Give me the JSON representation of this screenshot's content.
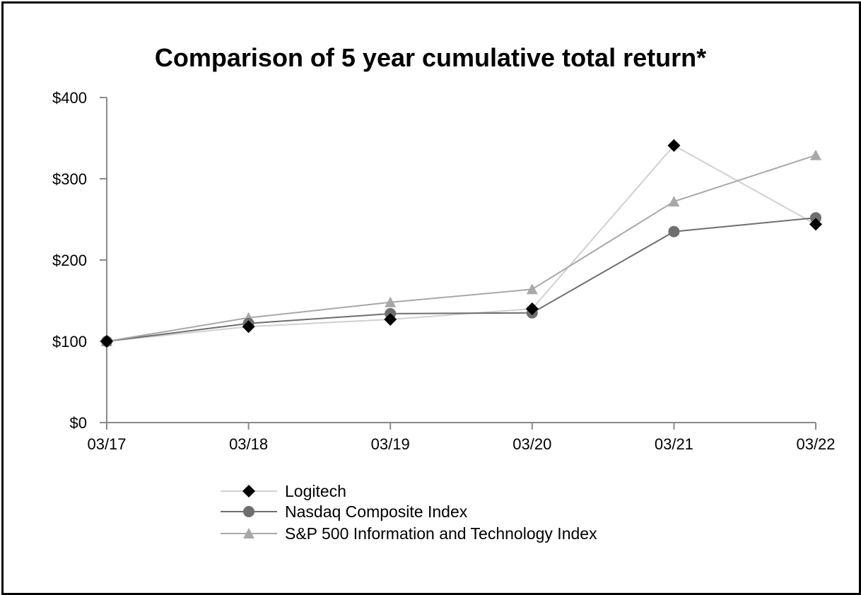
{
  "chart_data": {
    "type": "line",
    "title": "Comparison of 5 year cumulative total return*",
    "xlabel": "",
    "ylabel": "",
    "categories": [
      "03/17",
      "03/18",
      "03/19",
      "03/20",
      "03/21",
      "03/22"
    ],
    "ylim": [
      0,
      400
    ],
    "yticks": [
      0,
      100,
      200,
      300,
      400
    ],
    "ytick_labels": [
      "$0",
      "$100",
      "$200",
      "$300",
      "$400"
    ],
    "grid": false,
    "legend_position": "bottom",
    "series": [
      {
        "name": "Logitech",
        "values": [
          100,
          118,
          127,
          140,
          341,
          244
        ],
        "color": "#d0d0d0",
        "marker": "diamond",
        "marker_color": "#000000"
      },
      {
        "name": "Nasdaq Composite Index",
        "values": [
          100,
          122,
          134,
          135,
          235,
          252
        ],
        "color": "#6e6e6e",
        "marker": "circle",
        "marker_color": "#6e6e6e"
      },
      {
        "name": "S&P 500 Information and Technology Index",
        "values": [
          100,
          129,
          148,
          164,
          272,
          329
        ],
        "color": "#a8a8a8",
        "marker": "triangle",
        "marker_color": "#a8a8a8"
      }
    ]
  }
}
